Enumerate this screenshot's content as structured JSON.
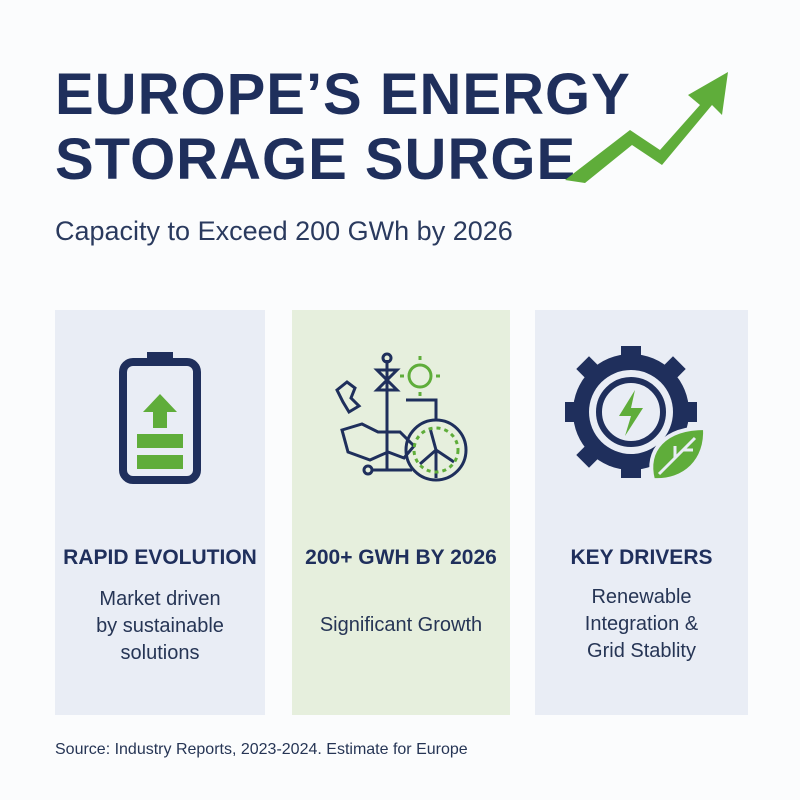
{
  "header": {
    "title_lines": [
      "EUROPE’S ENERGY",
      "STORAGE SURGE"
    ],
    "subtitle": "Capacity to Exceed 200 GWh by 2026"
  },
  "cards": [
    {
      "title": "RAPID EVOLUTION",
      "lines": [
        "Market driven",
        "by sustainable",
        "solutions"
      ]
    },
    {
      "title": "200+ GWH BY 2026",
      "lines": [
        "Significant Growth"
      ]
    },
    {
      "title": "KEY DRIVERS",
      "lines": [
        "Renewable",
        "Integration &",
        "Grid Stablity"
      ]
    }
  ],
  "source": "Source: Industry Reports, 2023-2024. Estimate for Europe"
}
